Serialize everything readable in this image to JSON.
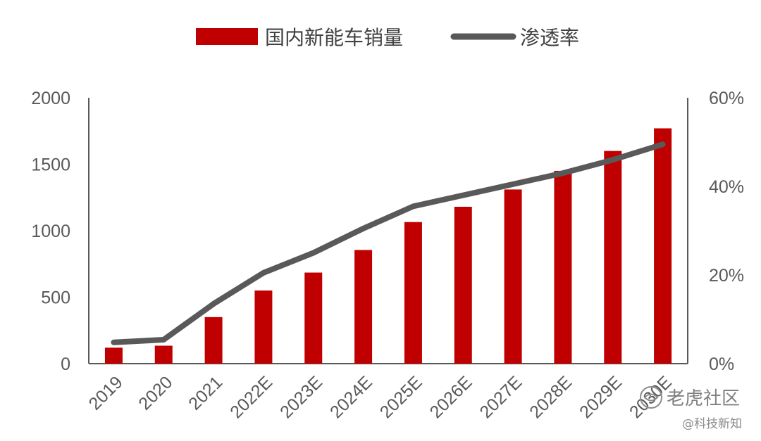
{
  "chart_data": {
    "type": "bar",
    "categories": [
      "2019",
      "2020",
      "2021",
      "2022E",
      "2023E",
      "2024E",
      "2025E",
      "2026E",
      "2027E",
      "2028E",
      "2029E",
      "2030E"
    ],
    "series": [
      {
        "name": "国内新能车销量",
        "type": "bar",
        "axis": "left",
        "color": "#c00000",
        "values": [
          120,
          135,
          350,
          550,
          685,
          855,
          1065,
          1180,
          1310,
          1450,
          1600,
          1770
        ]
      },
      {
        "name": "渗透率",
        "type": "line",
        "axis": "right",
        "color": "#595959",
        "values": [
          0.048,
          0.054,
          0.135,
          0.205,
          0.25,
          0.305,
          0.355,
          0.38,
          0.405,
          0.43,
          0.46,
          0.495
        ]
      }
    ],
    "y_left": {
      "ylim": [
        0,
        2000
      ],
      "ticks": [
        "0",
        "500",
        "1000",
        "1500",
        "2000"
      ]
    },
    "y_right": {
      "ylim": [
        0,
        0.6
      ],
      "ticks": [
        "0%",
        "20%",
        "40%",
        "60%"
      ]
    },
    "legend": {
      "position": "top"
    },
    "grid": false
  },
  "watermark": {
    "brand": "老虎社区",
    "handle": "@科技新知",
    "icon": "tiger-logo-icon"
  }
}
